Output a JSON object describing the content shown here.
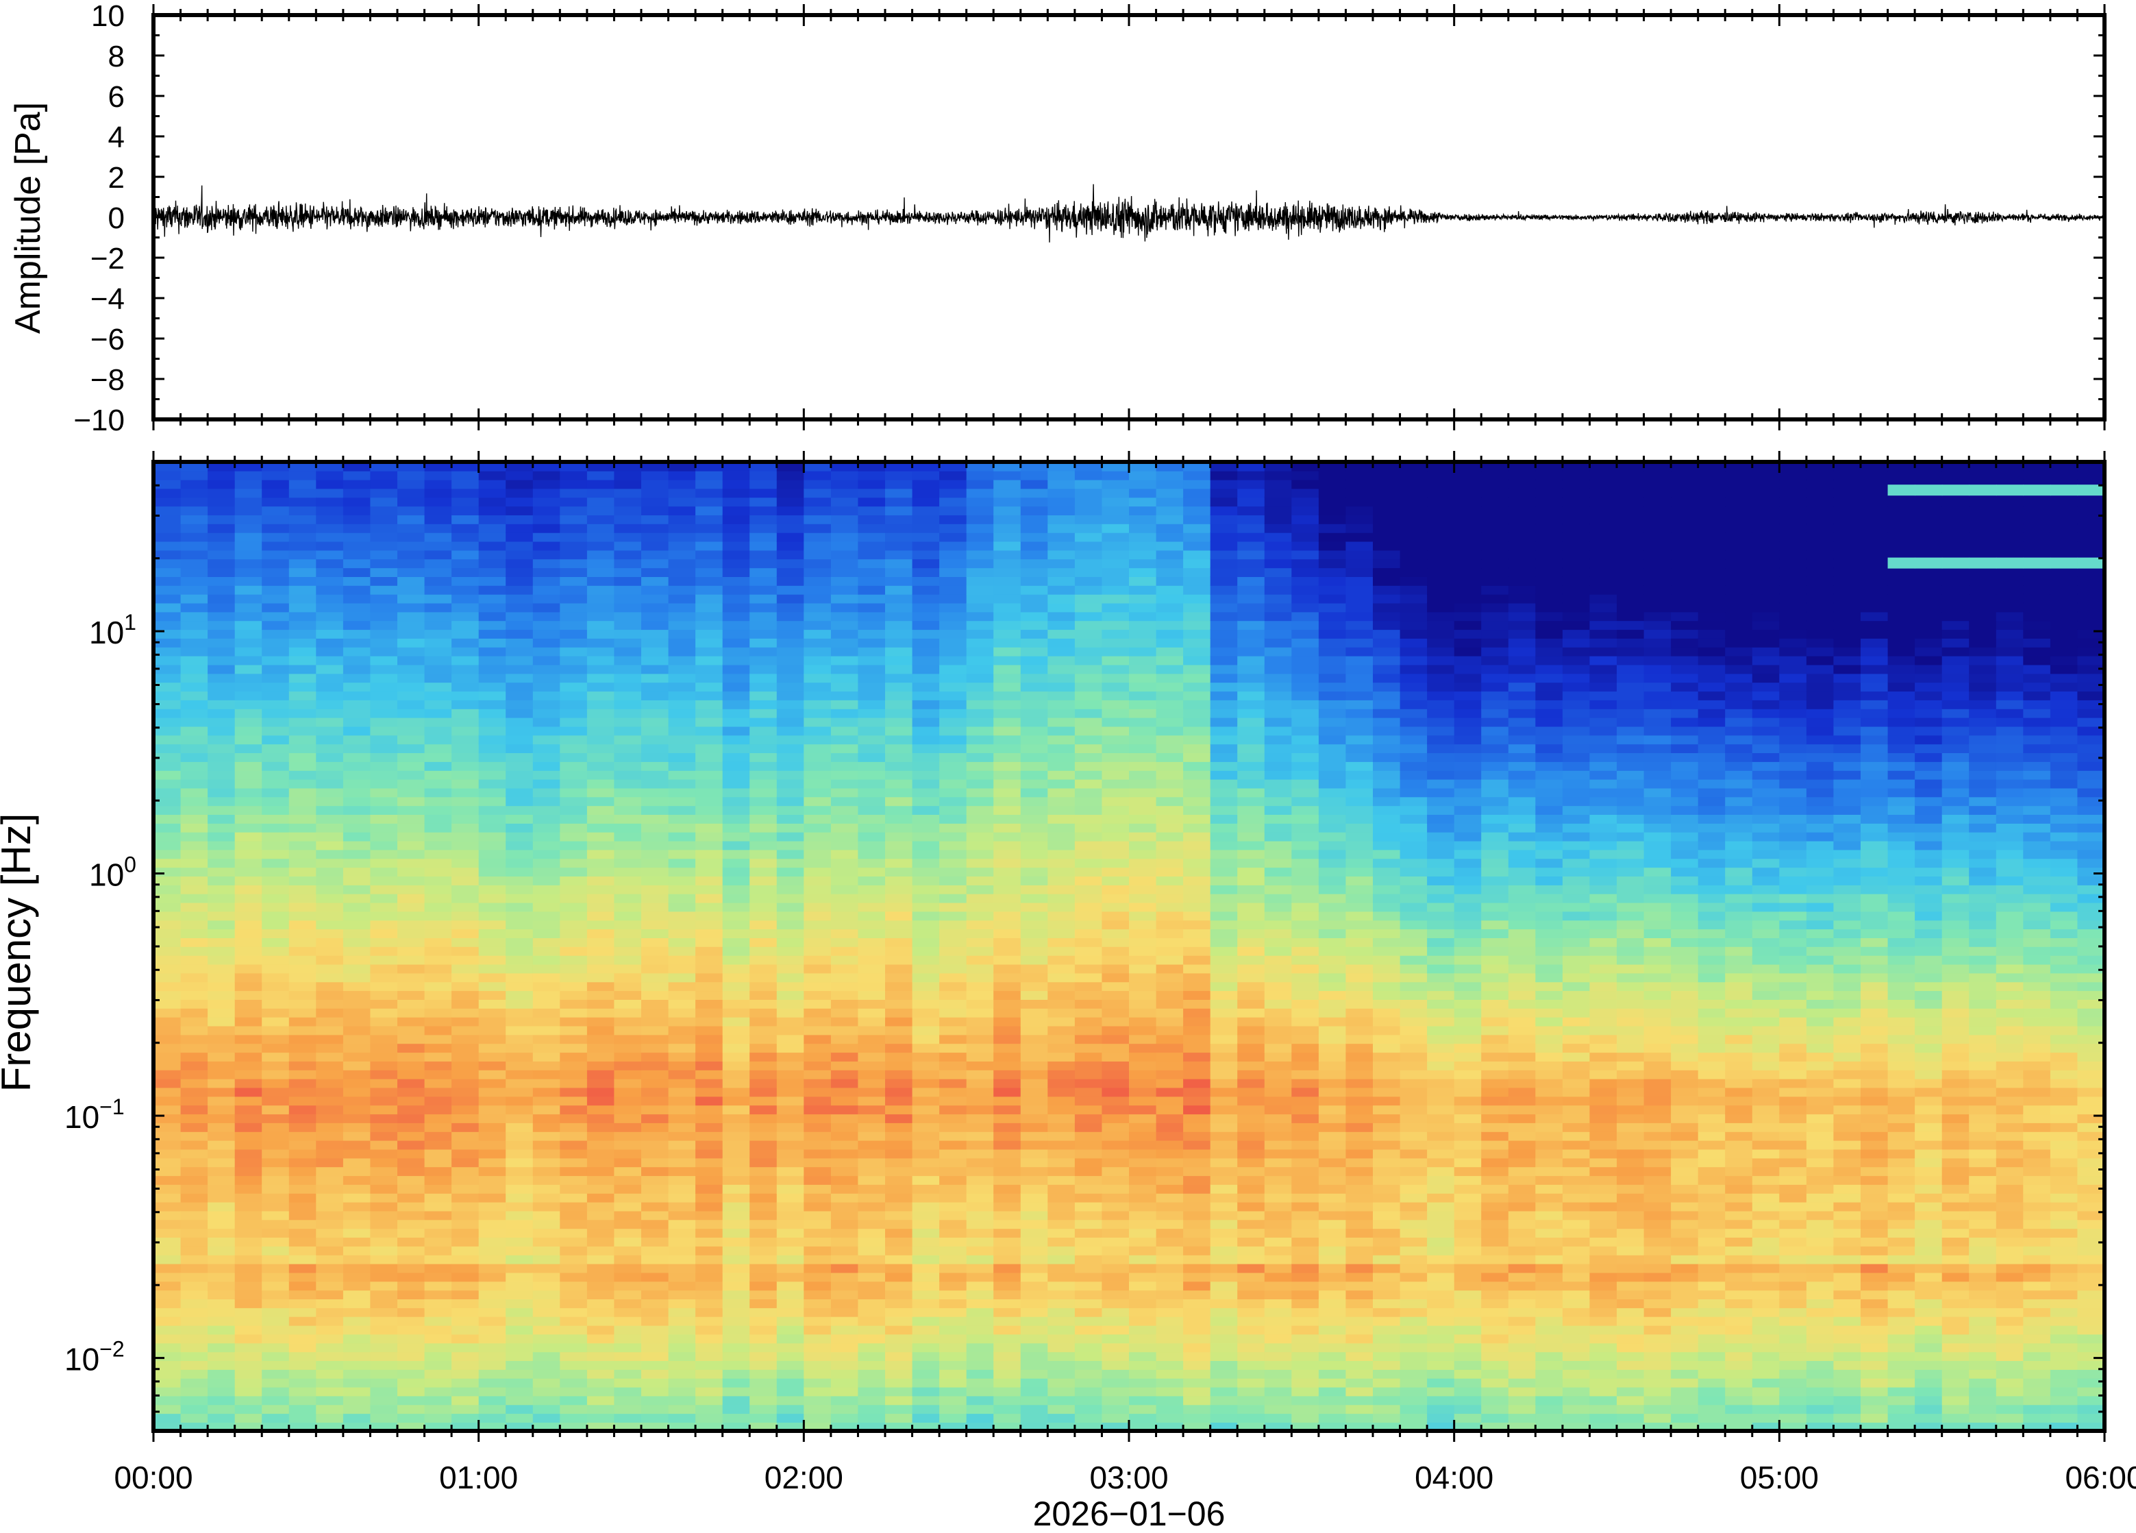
{
  "chart_data": [
    {
      "type": "line",
      "panel": "waveform",
      "ylabel": "Amplitude [Pa]",
      "ylim": [
        -10,
        10
      ],
      "yticks": [
        "10",
        "8",
        "6",
        "4",
        "2",
        "0",
        "−2",
        "−4",
        "−6",
        "−8",
        "−10"
      ],
      "ytick_values": [
        10,
        8,
        6,
        4,
        2,
        0,
        -2,
        -4,
        -6,
        -8,
        -10
      ],
      "line_color": "#000000",
      "series": [
        {
          "x": [
            "00:00",
            "00:15",
            "00:30",
            "00:45",
            "01:00",
            "01:15",
            "01:30",
            "01:45",
            "02:00",
            "02:15",
            "02:30",
            "02:45",
            "03:00",
            "03:15",
            "03:30",
            "03:45",
            "04:00",
            "04:15",
            "04:30",
            "04:45",
            "05:00",
            "05:15",
            "05:30",
            "05:45",
            "06:00"
          ],
          "envelope": [
            1.2,
            1.0,
            1.0,
            0.8,
            0.8,
            0.8,
            0.6,
            0.5,
            0.6,
            0.5,
            0.5,
            0.9,
            1.6,
            1.2,
            1.2,
            0.9,
            0.3,
            0.2,
            0.2,
            0.5,
            0.3,
            0.3,
            0.6,
            0.3,
            0.2
          ],
          "peak_max": 2.6,
          "peak_min": -2.1
        }
      ]
    },
    {
      "type": "heatmap",
      "panel": "spectrogram",
      "ylabel": "Frequency [Hz]",
      "yscale": "log",
      "ylim": [
        0.005,
        50
      ],
      "yticks": [
        {
          "base": "10",
          "exp": "1",
          "value": 10
        },
        {
          "base": "10",
          "exp": "0",
          "value": 1
        },
        {
          "base": "10",
          "exp": "−1",
          "value": 0.1
        },
        {
          "base": "10",
          "exp": "−2",
          "value": 0.01
        }
      ],
      "xlabel": "2026−01−06",
      "xticks": [
        "00:00",
        "01:00",
        "02:00",
        "03:00",
        "04:00",
        "05:00",
        "06:00"
      ],
      "xlim": [
        "00:00",
        "06:00"
      ],
      "colormap": "jet",
      "time_bins_per_hour": 12,
      "activity_by_hour": [
        0.95,
        0.9,
        0.9,
        1.0,
        0.5,
        0.45
      ],
      "tones_after": "05:20",
      "tone_frequencies_hz": [
        38,
        19
      ]
    }
  ]
}
